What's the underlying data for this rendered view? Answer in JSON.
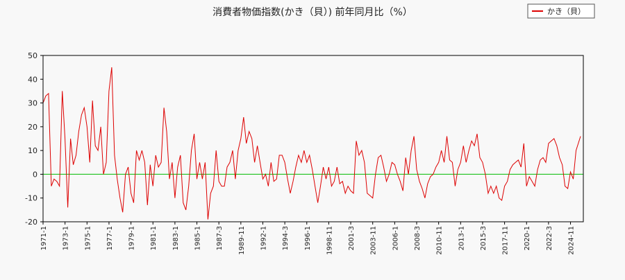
{
  "chart_data": {
    "type": "line",
    "title": "消費者物価指数(かき（貝）) 前年同月比（%）",
    "x": [
      0,
      3,
      6,
      9,
      12,
      15,
      18,
      21,
      24,
      27,
      30,
      33,
      36,
      39,
      42,
      45,
      48,
      51,
      54,
      57,
      60,
      63,
      66,
      69,
      72,
      75,
      78,
      81,
      84,
      87,
      90,
      93,
      96,
      99,
      102,
      105,
      108,
      111,
      114,
      117,
      120,
      123,
      126,
      129,
      132,
      135,
      138,
      141,
      144,
      147,
      150,
      153,
      156,
      159,
      162,
      165,
      168,
      171,
      174,
      177,
      180,
      183,
      186,
      189,
      192,
      195,
      198,
      201,
      204,
      207,
      210,
      213,
      216,
      219,
      222,
      225,
      228,
      231,
      234,
      237,
      240,
      243,
      246,
      249,
      252,
      255,
      258,
      261,
      264,
      267,
      270,
      273,
      276,
      279,
      282,
      285,
      288,
      291,
      294,
      297,
      300,
      303,
      306,
      309,
      312,
      315,
      318,
      321,
      324,
      327,
      330,
      333,
      336,
      339,
      342,
      345,
      348,
      351,
      354,
      357,
      360,
      363,
      366,
      369,
      372,
      375,
      378,
      381,
      384,
      387,
      390,
      393,
      396,
      399,
      402,
      405,
      408,
      411,
      414,
      417,
      420,
      423,
      426,
      429,
      432,
      435,
      438,
      441,
      444,
      447,
      450,
      453,
      456,
      459,
      462,
      465,
      468,
      471,
      474,
      477,
      480,
      483,
      486,
      489,
      492,
      495,
      498,
      501,
      504,
      507,
      510,
      513,
      516,
      519,
      522,
      525,
      528,
      531,
      534,
      537,
      540,
      543,
      546,
      549,
      552,
      555,
      558,
      561,
      564,
      567,
      570,
      573,
      576,
      579,
      582,
      587
    ],
    "series": [
      {
        "name": "かき（貝）",
        "color": "#dd0000",
        "values": [
          30,
          33,
          34,
          -5,
          -2,
          -3,
          -5,
          35,
          15,
          -14,
          15,
          4,
          8,
          18,
          25,
          28,
          20,
          5,
          31,
          12,
          10,
          20,
          0,
          5,
          35,
          45,
          8,
          -2,
          -10,
          -16,
          0,
          3,
          -8,
          -12,
          10,
          6,
          10,
          5,
          -13,
          4,
          -5,
          8,
          3,
          5,
          28,
          18,
          -2,
          5,
          -10,
          3,
          8,
          -12,
          -15,
          -5,
          10,
          17,
          -2,
          5,
          -2,
          5,
          -19,
          -8,
          -5,
          10,
          -3,
          -5,
          -5,
          3,
          5,
          10,
          -2,
          10,
          15,
          24,
          13,
          18,
          15,
          5,
          12,
          5,
          -2,
          0,
          -5,
          5,
          -3,
          -2,
          8,
          8,
          5,
          -2,
          -8,
          -3,
          3,
          8,
          5,
          10,
          5,
          8,
          2,
          -5,
          -12,
          -5,
          3,
          -2,
          3,
          -5,
          -3,
          3,
          -4,
          -3,
          -8,
          -5,
          -7,
          -8,
          14,
          8,
          10,
          5,
          -8,
          -9,
          -10,
          0,
          7,
          8,
          3,
          -3,
          0,
          5,
          4,
          0,
          -3,
          -7,
          7,
          0,
          10,
          16,
          2,
          -3,
          -6,
          -10,
          -4,
          -1,
          0,
          3,
          5,
          10,
          5,
          16,
          6,
          5,
          -5,
          2,
          5,
          12,
          5,
          10,
          14,
          12,
          17,
          7,
          5,
          0,
          -8,
          -5,
          -8,
          -5,
          -10,
          -11,
          -5,
          -3,
          2,
          4,
          5,
          6,
          3,
          13,
          -5,
          -1,
          -3,
          -5,
          2,
          6,
          7,
          5,
          13,
          14,
          15,
          12,
          7,
          4,
          -5,
          -6,
          1,
          -2,
          10,
          16
        ]
      }
    ],
    "xlim": [
      0,
      590
    ],
    "xticks": [
      {
        "value": 0,
        "label": "1971-1"
      },
      {
        "value": 24,
        "label": "1973-1"
      },
      {
        "value": 48,
        "label": "1975-1"
      },
      {
        "value": 72,
        "label": "1977-1"
      },
      {
        "value": 96,
        "label": "1979-1"
      },
      {
        "value": 120,
        "label": "1981-1"
      },
      {
        "value": 144,
        "label": "1983-1"
      },
      {
        "value": 168,
        "label": "1985-1"
      },
      {
        "value": 192,
        "label": "1987-3"
      },
      {
        "value": 216,
        "label": "1989-11"
      },
      {
        "value": 240,
        "label": "1992-1"
      },
      {
        "value": 264,
        "label": "1994-3"
      },
      {
        "value": 288,
        "label": "1996-1"
      },
      {
        "value": 312,
        "label": "1998-11"
      },
      {
        "value": 336,
        "label": "2001-3"
      },
      {
        "value": 360,
        "label": "2003-11"
      },
      {
        "value": 384,
        "label": "2006-1"
      },
      {
        "value": 408,
        "label": "2008-3"
      },
      {
        "value": 432,
        "label": "2010-11"
      },
      {
        "value": 456,
        "label": "2013-1"
      },
      {
        "value": 480,
        "label": "2015-3"
      },
      {
        "value": 504,
        "label": "2017-11"
      },
      {
        "value": 528,
        "label": "2020-1"
      },
      {
        "value": 552,
        "label": "2022-3"
      },
      {
        "value": 576,
        "label": "2024-11"
      }
    ],
    "ylim": [
      -20,
      50
    ],
    "yticks": [
      -20,
      -10,
      0,
      10,
      20,
      30,
      40,
      50
    ],
    "reference_line": {
      "value": 0,
      "color": "#00bb00"
    },
    "legend": "top-right"
  }
}
